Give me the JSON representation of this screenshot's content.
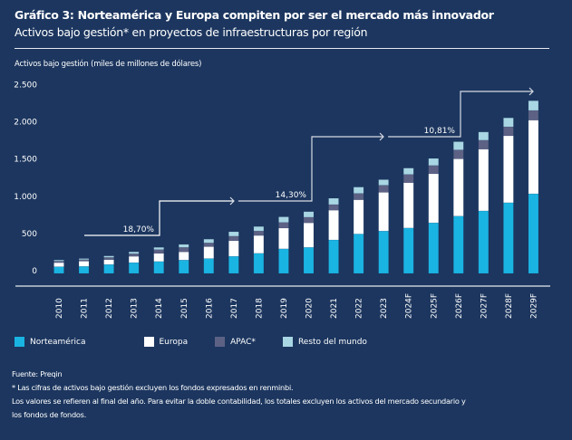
{
  "header": {
    "title": "Gráfico 3: Norteamérica y Europa compiten por ser el mercado más innovador",
    "subtitle": "Activos bajo gestión* en proyectos de infraestructuras por región"
  },
  "colors": {
    "background": "#1c365f",
    "norteamerica": "#1ab4e3",
    "europa": "#ffffff",
    "apac": "#5d6285",
    "resto": "#a9d6e3"
  },
  "legend": [
    {
      "label": "Norteamérica",
      "color": "#1ab4e3"
    },
    {
      "label": "Europa",
      "color": "#ffffff"
    },
    {
      "label": "APAC*",
      "color": "#5d6285"
    },
    {
      "label": "Resto del mundo",
      "color": "#a9d6e3"
    }
  ],
  "footer": {
    "source": "Fuente: Preqin",
    "note1": "* Las cifras de activos bajo gestión excluyen los fondos expresados en renminbi.",
    "note2": "Los valores se refieren al final del año. Para evitar la doble contabilidad, los totales excluyen los activos del mercado secundario y",
    "note3": "los fondos de fondos."
  },
  "chart_data": {
    "type": "bar",
    "stacked": true,
    "title": "Gráfico 3: Norteamérica y Europa compiten por ser el mercado más innovador",
    "subtitle": "Activos bajo gestión* en proyectos de infraestructuras por región",
    "xlabel": "",
    "ylabel": "Activos bajo gestión (miles de millones de dólares)",
    "ylim": [
      0,
      2500
    ],
    "yticks": [
      0,
      500,
      1000,
      1500,
      2000,
      2500
    ],
    "ytick_labels": [
      "0",
      "500",
      "1.000",
      "1.500",
      "2.000",
      "2.500"
    ],
    "grid": false,
    "legend_position": "bottom",
    "categories": [
      "2010",
      "2011",
      "2012",
      "2013",
      "2014",
      "2015",
      "2016",
      "2017",
      "2018",
      "2019",
      "2020",
      "2021",
      "2022",
      "2023",
      "2024F",
      "2025F",
      "2026F",
      "2027F",
      "2028F",
      "2029F"
    ],
    "series": [
      {
        "name": "Norteamérica",
        "values": [
          90,
          95,
          120,
          145,
          160,
          180,
          200,
          230,
          270,
          330,
          350,
          450,
          530,
          570,
          610,
          680,
          770,
          840,
          950,
          1070
        ]
      },
      {
        "name": "Europa",
        "values": [
          55,
          70,
          65,
          85,
          110,
          110,
          160,
          210,
          240,
          280,
          330,
          400,
          460,
          520,
          610,
          660,
          770,
          830,
          900,
          990
        ]
      },
      {
        "name": "APAC*",
        "values": [
          20,
          20,
          30,
          35,
          50,
          60,
          50,
          60,
          60,
          75,
          75,
          75,
          85,
          95,
          110,
          110,
          120,
          120,
          120,
          130
        ]
      },
      {
        "name": "Resto del mundo",
        "values": [
          15,
          15,
          20,
          25,
          30,
          40,
          50,
          60,
          60,
          75,
          75,
          85,
          85,
          75,
          85,
          95,
          110,
          110,
          120,
          130
        ]
      }
    ],
    "annotations": [
      {
        "text": "18,70%",
        "from": "2011",
        "to": "2017"
      },
      {
        "text": "14,30%",
        "from": "2017",
        "to": "2023"
      },
      {
        "text": "10,81%",
        "from": "2023",
        "to": "2029F"
      }
    ]
  }
}
